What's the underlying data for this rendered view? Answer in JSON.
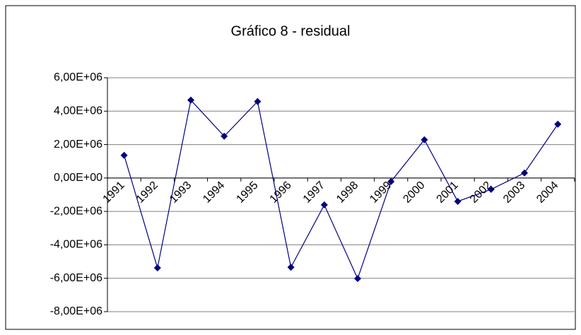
{
  "chart_data": {
    "type": "line",
    "title": "Gráfico 8 - residual",
    "categories": [
      "1991",
      "1992",
      "1993",
      "1994",
      "1995",
      "1996",
      "1997",
      "1998",
      "1999",
      "2000",
      "2001",
      "2002",
      "2003",
      "2004"
    ],
    "series": [
      {
        "name": "residual",
        "color": "#000080",
        "values": [
          1360000,
          -5380000,
          4660000,
          2500000,
          4580000,
          -5340000,
          -1610000,
          -6020000,
          -210000,
          2290000,
          -1400000,
          -680000,
          300000,
          3220000
        ]
      }
    ],
    "ylim": [
      -8000000,
      6000000
    ],
    "yticks": [
      {
        "value": -8000000,
        "label": "-8,00E+06"
      },
      {
        "value": -6000000,
        "label": "-6,00E+06"
      },
      {
        "value": -4000000,
        "label": "-4,00E+06"
      },
      {
        "value": -2000000,
        "label": "-2,00E+06"
      },
      {
        "value": 0,
        "label": "0,00E+00"
      },
      {
        "value": 2000000,
        "label": "2,00E+06"
      },
      {
        "value": 4000000,
        "label": "4,00E+06"
      },
      {
        "value": 6000000,
        "label": "6,00E+06"
      }
    ],
    "grid": true
  }
}
